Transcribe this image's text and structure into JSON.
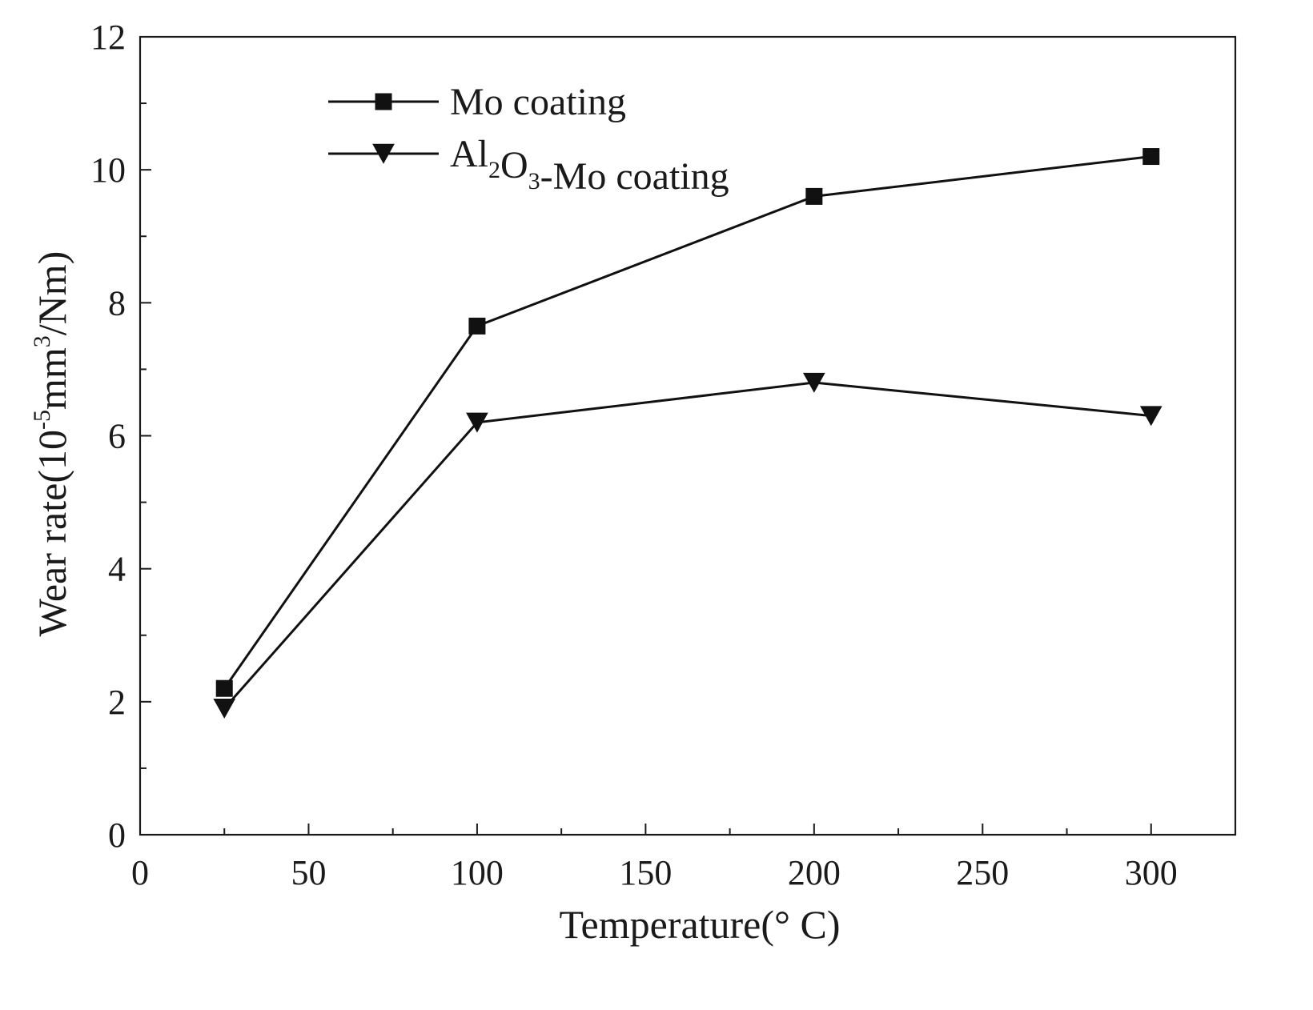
{
  "chart_data": {
    "type": "line",
    "title": "",
    "xlabel": "Temperature(° C)",
    "ylabel": {
      "main": "Wear rate(10",
      "exp1": "-5",
      "mid": "mm",
      "exp2": "3",
      "end": "/Nm)"
    },
    "xlim": [
      0,
      325
    ],
    "ylim": [
      0,
      12
    ],
    "x_ticks": [
      0,
      50,
      100,
      150,
      200,
      250,
      300
    ],
    "y_ticks": [
      0,
      2,
      4,
      6,
      8,
      10,
      12
    ],
    "x_minor_step": 25,
    "y_minor_step": 1,
    "grid": false,
    "legend_position": "top-left",
    "x": [
      25,
      100,
      200,
      300
    ],
    "series": [
      {
        "name": "Mo coating",
        "marker": "square",
        "values": [
          2.2,
          7.65,
          9.6,
          10.2
        ],
        "legend_parts": [
          {
            "text": "Mo coating",
            "sub": ""
          }
        ]
      },
      {
        "name": "Al2O3-Mo coating",
        "marker": "triangle-down",
        "values": [
          1.9,
          6.2,
          6.8,
          6.3
        ],
        "legend_parts": [
          {
            "text": "Al",
            "sub": "2"
          },
          {
            "text": "O",
            "sub": "3"
          },
          {
            "text": "-Mo coating",
            "sub": ""
          }
        ]
      }
    ]
  }
}
